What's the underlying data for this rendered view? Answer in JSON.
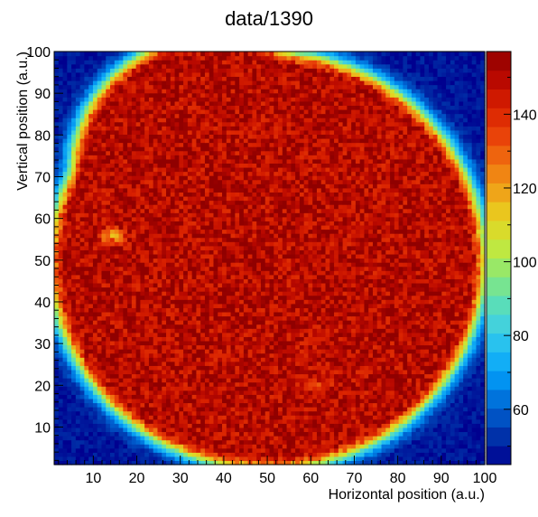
{
  "chart_data": {
    "type": "heatmap",
    "title": "data/1390",
    "xlabel": "Horizontal position (a.u.)",
    "ylabel": "Vertical position (a.u.)",
    "xlim": [
      1,
      100
    ],
    "ylim": [
      1,
      100
    ],
    "x_ticks": [
      "10",
      "20",
      "30",
      "40",
      "50",
      "60",
      "70",
      "80",
      "90",
      "100"
    ],
    "y_ticks": [
      "10",
      "20",
      "30",
      "40",
      "50",
      "60",
      "70",
      "80",
      "90",
      "100"
    ],
    "colorbar": {
      "zlim": [
        45,
        157
      ],
      "ticks": [
        "60",
        "80",
        "100",
        "120",
        "140"
      ],
      "bands": 22
    },
    "grid": false,
    "features": {
      "plateau_value": 150,
      "background_value": 48,
      "main_disk": {
        "cx": 50,
        "cy": 50,
        "r": 47
      },
      "upper_lobe": {
        "cx": 38,
        "cy": 71,
        "r": 30
      },
      "hotspots": [
        {
          "x": 14,
          "y": 56,
          "value": 122,
          "label": ""
        },
        {
          "x": 62,
          "y": 20,
          "value": 138,
          "label": ""
        }
      ]
    },
    "palette": [
      "#00008f",
      "#0030a8",
      "#0060d0",
      "#0090f0",
      "#18b8f8",
      "#40d0e0",
      "#60e0b0",
      "#90e870",
      "#c8e838",
      "#e8d020",
      "#f0a018",
      "#f07010",
      "#e84008",
      "#d82000",
      "#b80800",
      "#900000"
    ]
  }
}
